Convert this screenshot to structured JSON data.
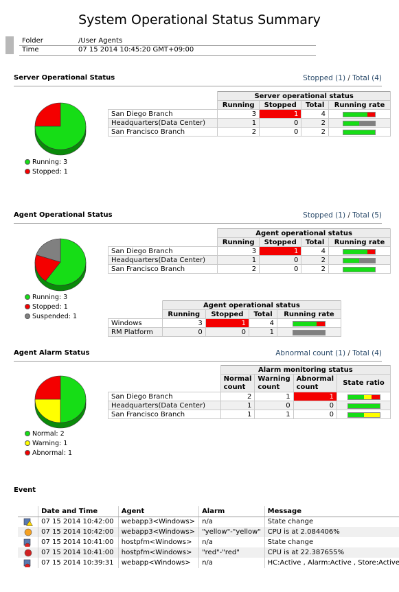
{
  "title": "System Operational Status Summary",
  "meta": {
    "folder_label": "Folder",
    "folder_value": "/User Agents",
    "time_label": "Time",
    "time_value": "07 15 2014 10:45:20 GMT+09:00"
  },
  "server": {
    "title": "Server Operational Status",
    "summary_stopped": "Stopped (1)",
    "summary_total": "Total (4)",
    "table_caption": "Server operational status",
    "headers": [
      "Running",
      "Stopped",
      "Total",
      "Running rate"
    ],
    "rows": [
      {
        "name": "San Diego Branch",
        "running": "3",
        "stopped": "1",
        "total": "4",
        "rate": [
          0.75,
          0,
          0.25
        ]
      },
      {
        "name": "Headquarters(Data Center)",
        "running": "1",
        "stopped": "0",
        "total": "2",
        "rate": [
          0.5,
          0.5,
          0
        ]
      },
      {
        "name": "San Francisco Branch",
        "running": "2",
        "stopped": "0",
        "total": "2",
        "rate": [
          1,
          0,
          0
        ]
      }
    ],
    "legend": [
      "Running: 3",
      "Stopped: 1"
    ],
    "pie": [
      3,
      1
    ]
  },
  "agent": {
    "title": "Agent Operational Status",
    "summary_stopped": "Stopped (1)",
    "summary_total": "Total (5)",
    "table_caption": "Agent operational status",
    "headers": [
      "Running",
      "Stopped",
      "Total",
      "Running rate"
    ],
    "rows": [
      {
        "name": "San Diego Branch",
        "running": "3",
        "stopped": "1",
        "total": "4",
        "rate": [
          0.75,
          0,
          0.25
        ]
      },
      {
        "name": "Headquarters(Data Center)",
        "running": "1",
        "stopped": "0",
        "total": "2",
        "rate": [
          0.5,
          0.5,
          0
        ]
      },
      {
        "name": "San Francisco Branch",
        "running": "2",
        "stopped": "0",
        "total": "2",
        "rate": [
          1,
          0,
          0
        ]
      }
    ],
    "table2_caption": "Agent operational status",
    "table2_rows": [
      {
        "name": "Windows",
        "running": "3",
        "stopped": "1",
        "total": "4",
        "rate": [
          0.75,
          0,
          0.25
        ]
      },
      {
        "name": "RM Platform",
        "running": "0",
        "stopped": "0",
        "total": "1",
        "rate": [
          0,
          1,
          0
        ]
      }
    ],
    "legend": [
      "Running: 3",
      "Stopped: 1",
      "Suspended: 1"
    ],
    "pie": [
      3,
      1,
      1
    ]
  },
  "alarm": {
    "title": "Agent Alarm Status",
    "summary_abnormal": "Abnormal count (1)",
    "summary_total": "Total (4)",
    "table_caption": "Alarm monitoring status",
    "headers": [
      "Normal count",
      "Warning count",
      "Abnormal count",
      "State ratio"
    ],
    "rows": [
      {
        "name": "San Diego Branch",
        "normal": "2",
        "warning": "1",
        "abnormal": "1",
        "rate": [
          0.5,
          0.25,
          0.25
        ]
      },
      {
        "name": "Headquarters(Data Center)",
        "normal": "1",
        "warning": "0",
        "abnormal": "0",
        "rate": [
          1,
          0,
          0
        ]
      },
      {
        "name": "San Francisco Branch",
        "normal": "1",
        "warning": "1",
        "abnormal": "0",
        "rate": [
          0.5,
          0.5,
          0
        ]
      }
    ],
    "legend": [
      "Normal: 2",
      "Warning: 1",
      "Abnormal: 1"
    ],
    "pie": [
      2,
      1,
      1
    ]
  },
  "event": {
    "title": "Event",
    "headers": [
      "Date and Time",
      "Agent",
      "Alarm",
      "Message"
    ],
    "rows": [
      {
        "icon": "warning-state-icon",
        "time": "07 15 2014 10:42:00",
        "agent": "webapp3<Windows>",
        "alarm": "n/a",
        "message": "State change"
      },
      {
        "icon": "warning-alarm-icon",
        "time": "07 15 2014 10:42:00",
        "agent": "webapp3<Windows>",
        "alarm": "\"yellow\"-\"yellow\"",
        "message": "CPU is at 2.084406%"
      },
      {
        "icon": "error-state-icon",
        "time": "07 15 2014 10:41:00",
        "agent": "hostpfm<Windows>",
        "alarm": "n/a",
        "message": "State change"
      },
      {
        "icon": "error-alarm-icon",
        "time": "07 15 2014 10:41:00",
        "agent": "hostpfm<Windows>",
        "alarm": "\"red\"-\"red\"",
        "message": "CPU is at 22.387655%"
      },
      {
        "icon": "error-state-icon",
        "time": "07 15 2014 10:39:31",
        "agent": "webapp<Windows>",
        "alarm": "n/a",
        "message": "HC:Active , Alarm:Active , Store:Active"
      }
    ]
  },
  "colors": {
    "green": "#16dd16",
    "red": "#f40000",
    "gray": "#808080",
    "yellow": "#ffff00"
  }
}
